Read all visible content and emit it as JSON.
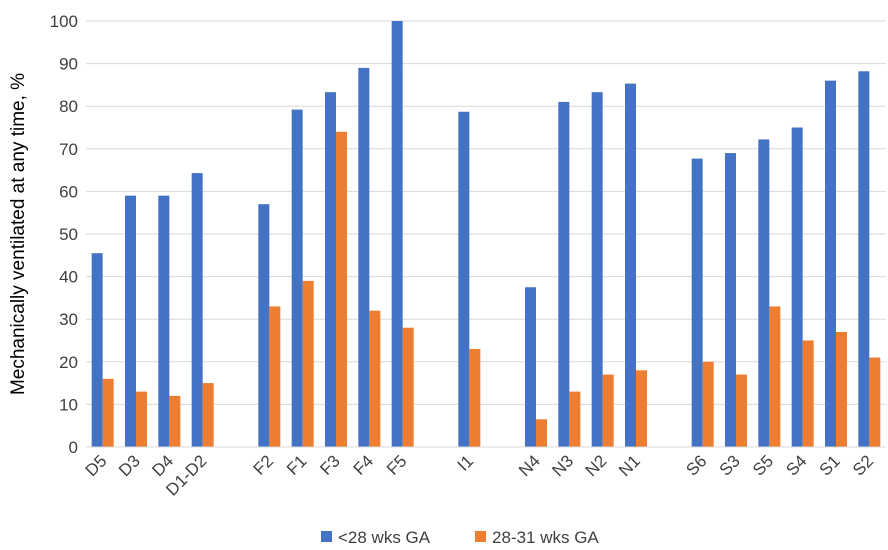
{
  "chart_data": {
    "type": "bar",
    "title": "",
    "xlabel": "",
    "ylabel": "Mechanically ventilated at any time, %",
    "ylim": [
      0,
      100
    ],
    "yticks": [
      0,
      10,
      20,
      30,
      40,
      50,
      60,
      70,
      80,
      90,
      100
    ],
    "grid": true,
    "legend_position": "bottom",
    "categories": [
      "D5",
      "D3",
      "D4",
      "D1-D2",
      "",
      "F2",
      "F1",
      "F3",
      "F4",
      "F5",
      "",
      "I1",
      "",
      "N4",
      "N3",
      "N2",
      "N1",
      "",
      "S6",
      "S3",
      "S5",
      "S4",
      "S1",
      "S2"
    ],
    "series": [
      {
        "name": "<28 wks GA",
        "color": "#4472C4",
        "values": [
          45.5,
          59,
          59,
          64.3,
          null,
          57,
          79.2,
          83.3,
          89,
          100,
          null,
          78.7,
          null,
          37.5,
          81,
          83.3,
          85.3,
          null,
          67.7,
          69,
          72.2,
          75,
          86,
          88.2
        ]
      },
      {
        "name": "28-31 wks GA",
        "color": "#ED7D31",
        "values": [
          16,
          13,
          12,
          15,
          null,
          33,
          39,
          74,
          32,
          28,
          null,
          23,
          null,
          6.5,
          13,
          17,
          18,
          null,
          20,
          17,
          33,
          25,
          27,
          21
        ]
      }
    ]
  }
}
